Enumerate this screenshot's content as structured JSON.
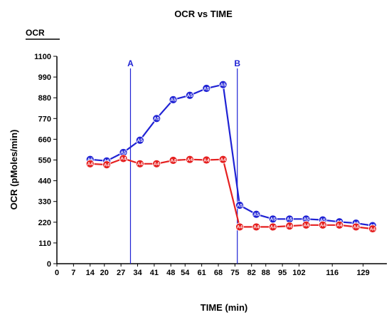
{
  "chart_data": {
    "type": "line",
    "title": "OCR vs TIME",
    "corner_label": "OCR",
    "xlabel": "TIME (min)",
    "ylabel": "OCR (pMoles/min)",
    "xlim": [
      0,
      139
    ],
    "ylim": [
      0,
      1100
    ],
    "x_ticks": [
      0,
      7,
      14,
      20,
      27,
      34,
      41,
      48,
      54,
      61,
      68,
      75,
      82,
      88,
      95,
      102,
      116,
      129
    ],
    "y_ticks": [
      0,
      110,
      220,
      330,
      440,
      550,
      660,
      770,
      880,
      990,
      1100
    ],
    "grid": false,
    "vertical_markers": [
      {
        "label": "A",
        "x": 31
      },
      {
        "label": "B",
        "x": 76
      }
    ],
    "series": [
      {
        "name": "A5",
        "color": "#1f22d4",
        "x": [
          14,
          21,
          28,
          35,
          42,
          49,
          56,
          63,
          70,
          77,
          84,
          91,
          98,
          105,
          112,
          119,
          126,
          133
        ],
        "values": [
          553,
          545,
          590,
          655,
          770,
          870,
          893,
          930,
          950,
          310,
          262,
          237,
          237,
          237,
          232,
          222,
          215,
          202
        ]
      },
      {
        "name": "A4",
        "color": "#e52020",
        "x": [
          14,
          21,
          28,
          35,
          42,
          49,
          56,
          63,
          70,
          77,
          84,
          91,
          98,
          105,
          112,
          119,
          126,
          133
        ],
        "values": [
          530,
          525,
          558,
          530,
          530,
          548,
          553,
          550,
          553,
          195,
          195,
          195,
          200,
          205,
          205,
          205,
          195,
          185
        ]
      }
    ]
  },
  "colors": {
    "vertical_line": "#1f22d4",
    "axis": "#000000"
  }
}
